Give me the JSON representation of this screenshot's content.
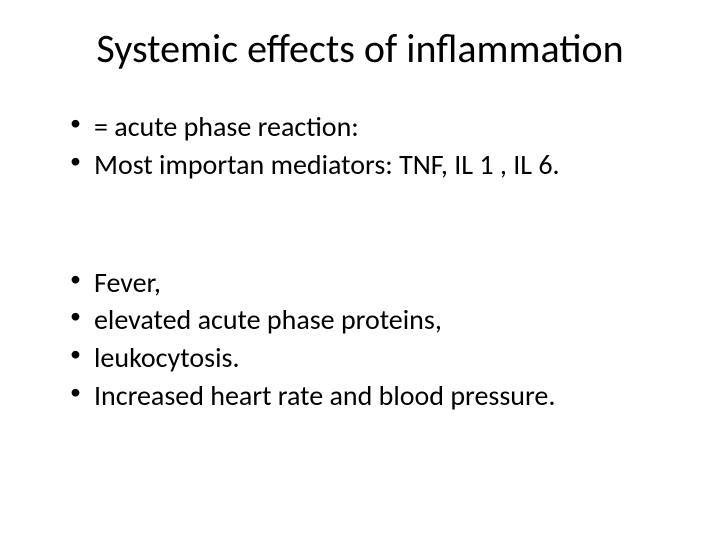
{
  "slide": {
    "title": "Systemic effects of inflammation",
    "title_fontsize": 40,
    "body_fontsize": 28,
    "background_color": "#ffffff",
    "text_color": "#000000",
    "font_family": "Calibri",
    "group1": {
      "item1": "= acute phase reaction:",
      "item2": "Most importan mediators: TNF, IL 1 , IL 6."
    },
    "group2": {
      "item1": "Fever,",
      "item2": " elevated acute phase proteins,",
      "item3": " leukocytosis.",
      "item4": "Increased heart rate and blood pressure."
    }
  }
}
